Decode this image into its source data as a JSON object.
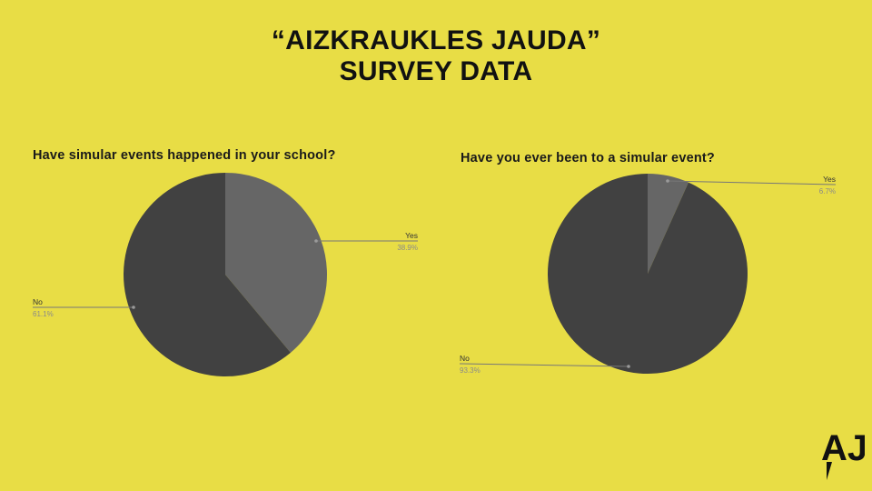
{
  "slide": {
    "title_line1": "“AIZKRAUKLES JAUDA”",
    "title_line2": "SURVEY DATA"
  },
  "logo": {
    "text": "AJ"
  },
  "colors": {
    "background": "#e8dd45",
    "slice_dark": "#414141",
    "slice_light": "#666666",
    "leader_line": "#777777",
    "label_text": "#333333",
    "percent_text": "#8a8a8a"
  },
  "chart_data": [
    {
      "type": "pie",
      "title": "Have simular events happened in your school?",
      "slices": [
        {
          "label": "Yes",
          "percent_label": "38.9%",
          "value": 38.9
        },
        {
          "label": "No",
          "percent_label": "61.1%",
          "value": 61.1
        }
      ],
      "start_angle_deg": 0,
      "direction": "clockwise",
      "legend": "leader-line labels"
    },
    {
      "type": "pie",
      "title": "Have you ever been to a simular event?",
      "slices": [
        {
          "label": "Yes",
          "percent_label": "6.7%",
          "value": 6.7
        },
        {
          "label": "No",
          "percent_label": "93.3%",
          "value": 93.3
        }
      ],
      "start_angle_deg": 0,
      "direction": "clockwise",
      "legend": "leader-line labels"
    }
  ]
}
